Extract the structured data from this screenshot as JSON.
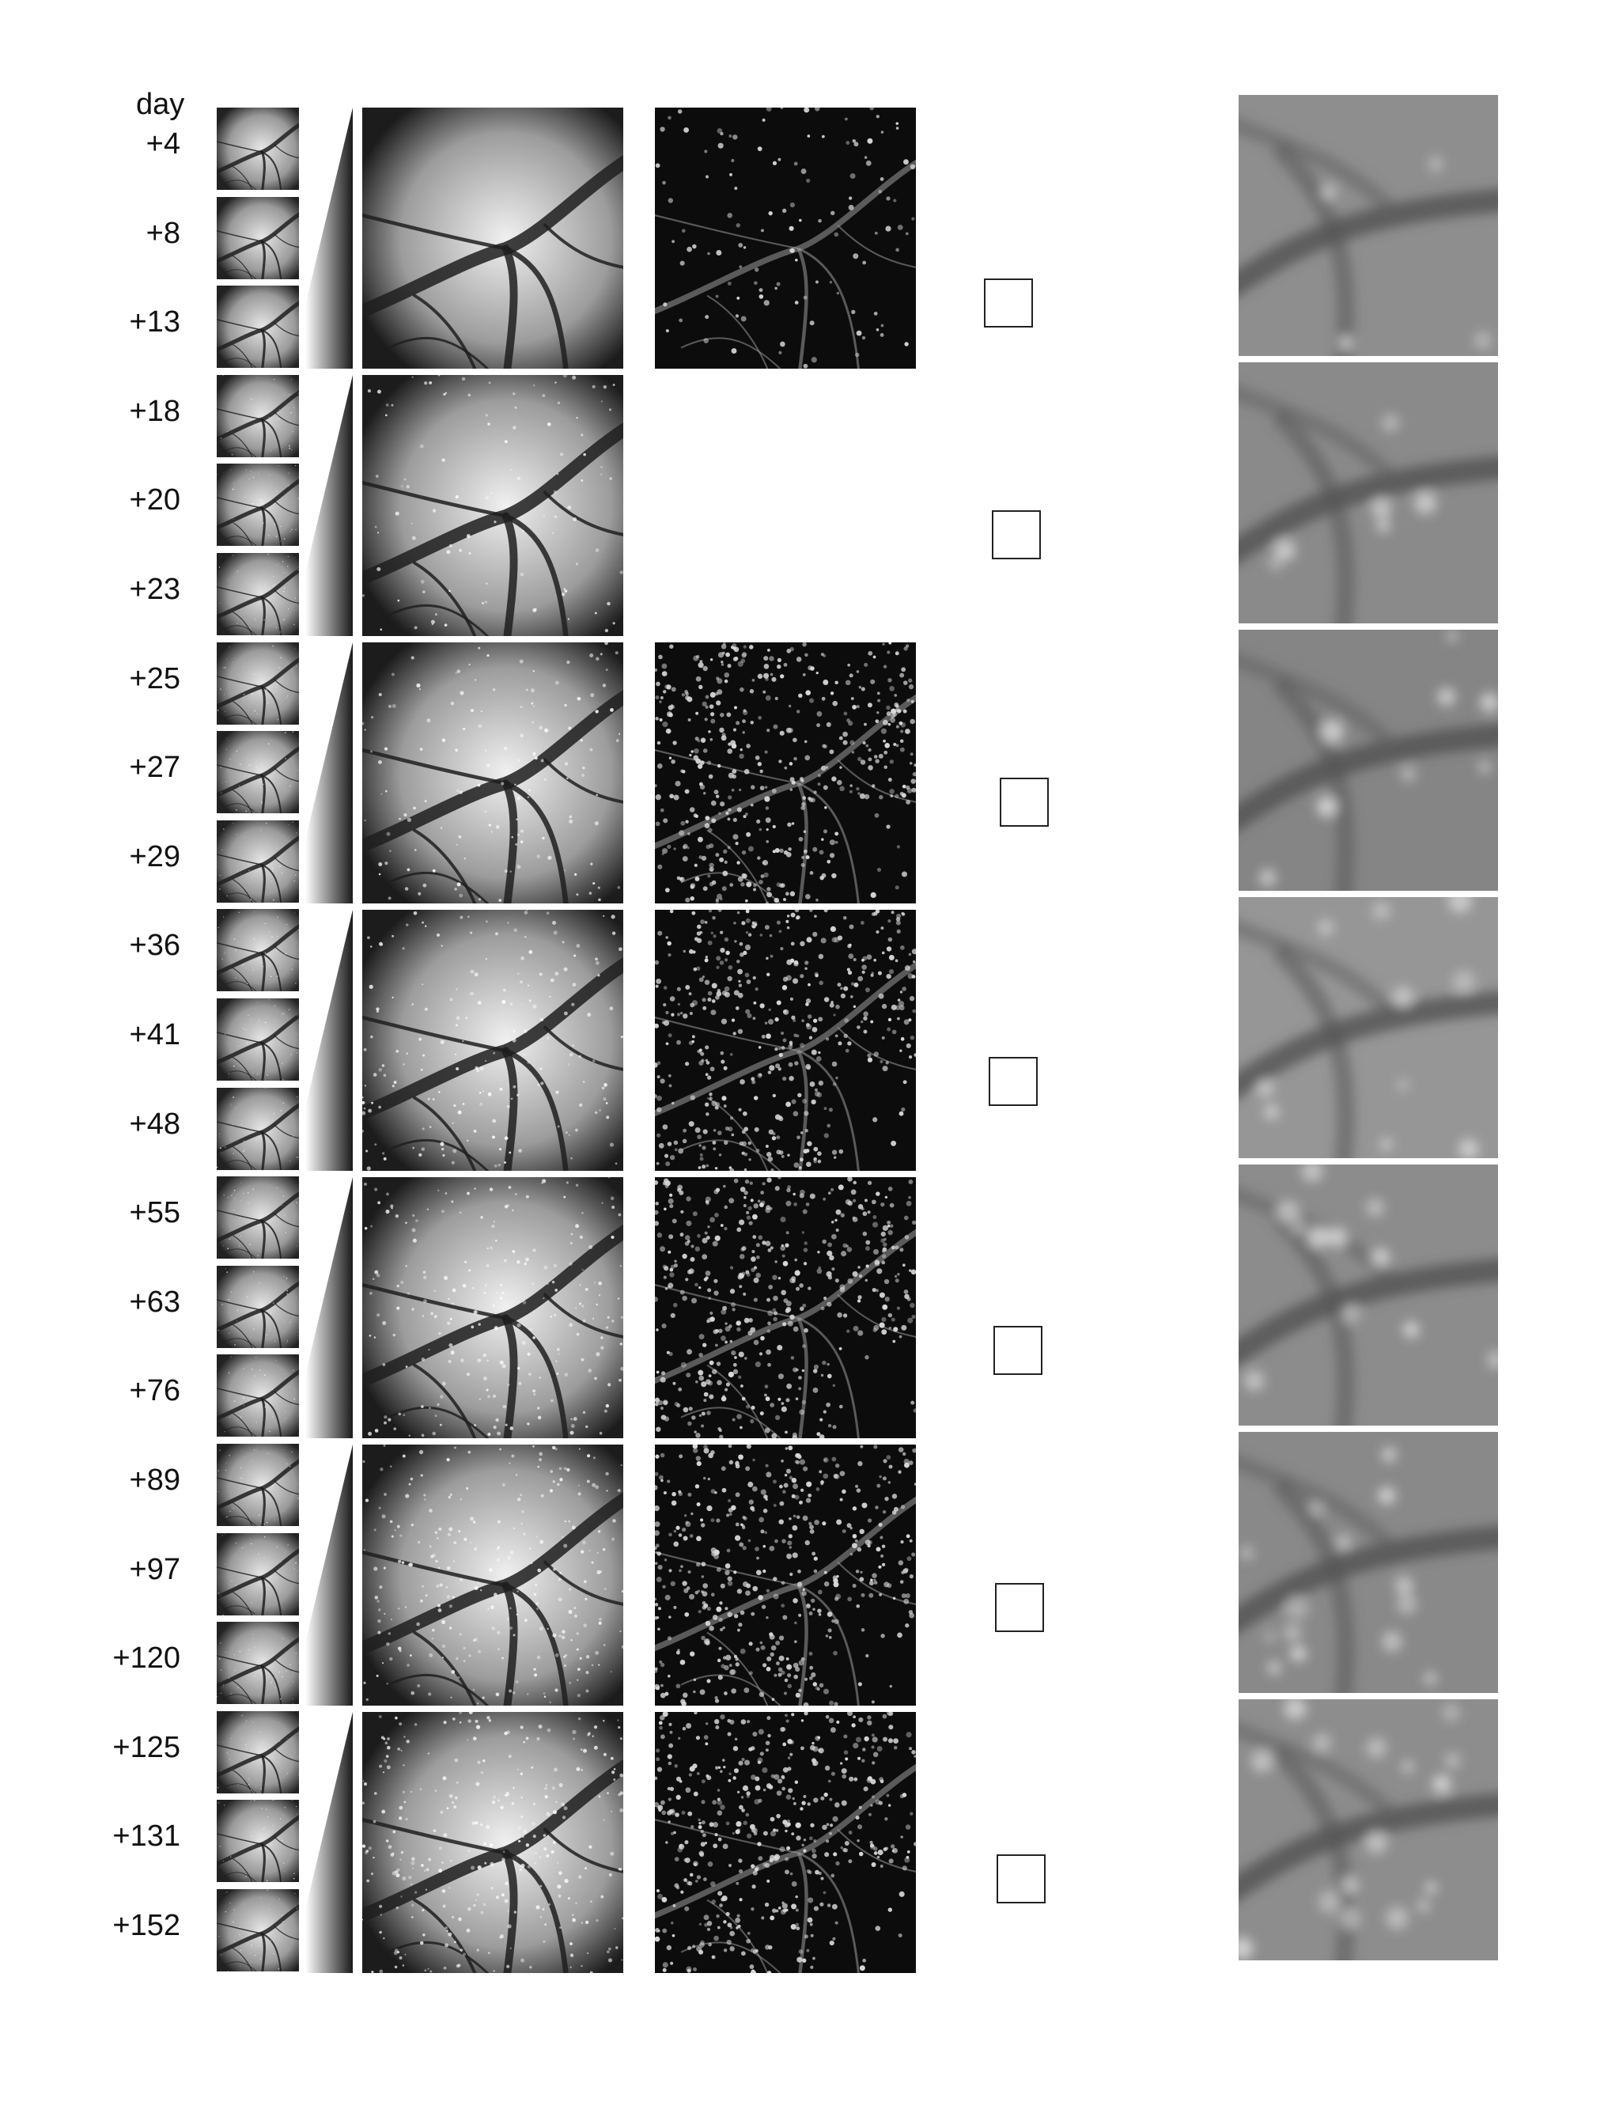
{
  "figure": {
    "day_header": "day",
    "days": [
      "+4",
      "+8",
      "+13",
      "+18",
      "+20",
      "+23",
      "+25",
      "+27",
      "+29",
      "+36",
      "+41",
      "+48",
      "+55",
      "+63",
      "+76",
      "+89",
      "+97",
      "+120",
      "+125",
      "+131",
      "+152"
    ],
    "groups": 7,
    "wide_field_panels": 7,
    "fluorescence_panels_present": [
      true,
      false,
      true,
      true,
      true,
      true,
      true
    ],
    "zoom_panels": 7,
    "colors": {
      "background": "#ffffff",
      "frame": "#ffffff",
      "text": "#111111"
    }
  }
}
